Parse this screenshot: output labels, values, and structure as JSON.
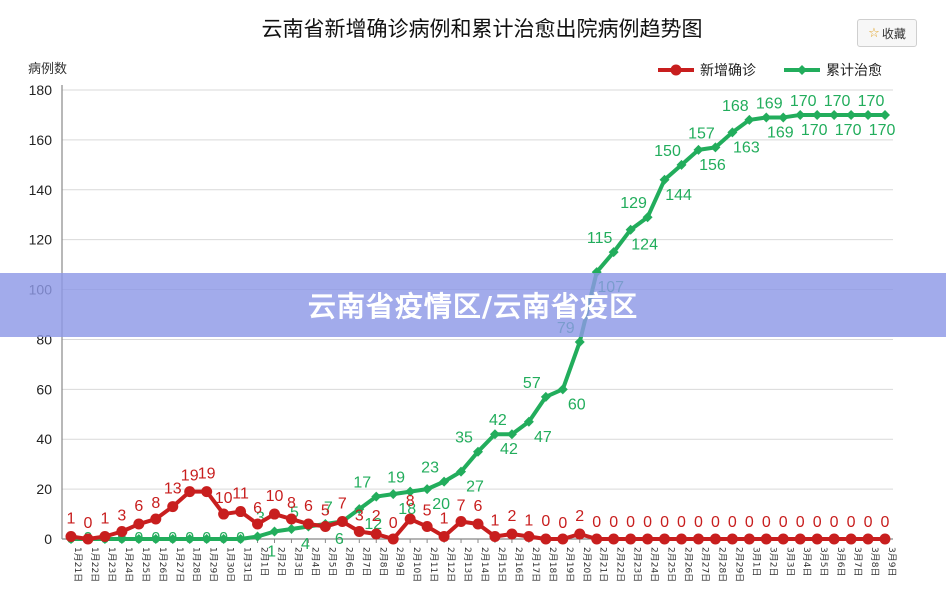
{
  "collect_button": {
    "label": "收藏",
    "icon": "star-icon"
  },
  "banner": {
    "text": "云南省疫情区/云南省疫区"
  },
  "colors": {
    "new": "#c81e1e",
    "cum": "#22ad5c",
    "axis": "#888888",
    "grid": "#d9d9d9"
  },
  "chart_data": {
    "type": "line",
    "title": "云南省新增确诊病例和累计治愈出院病例趋势图",
    "ylabel": "病例数",
    "xlabel": "",
    "ylim": [
      0,
      180
    ],
    "yticks": [
      0,
      20,
      40,
      60,
      80,
      100,
      120,
      140,
      160,
      180
    ],
    "legend_position": "top-right",
    "categories": [
      "1月21日",
      "1月22日",
      "1月23日",
      "1月24日",
      "1月25日",
      "1月26日",
      "1月27日",
      "1月28日",
      "1月29日",
      "1月30日",
      "1月31日",
      "2月1日",
      "2月2日",
      "2月3日",
      "2月4日",
      "2月5日",
      "2月6日",
      "2月7日",
      "2月8日",
      "2月9日",
      "2月10日",
      "2月11日",
      "2月12日",
      "2月13日",
      "2月14日",
      "2月15日",
      "2月16日",
      "2月17日",
      "2月18日",
      "2月19日",
      "2月20日",
      "2月21日",
      "2月22日",
      "2月23日",
      "2月24日",
      "2月25日",
      "2月26日",
      "2月27日",
      "2月28日",
      "2月29日",
      "3月1日",
      "3月2日",
      "3月3日",
      "3月4日",
      "3月5日",
      "3月6日",
      "3月7日",
      "3月8日",
      "3月9日"
    ],
    "series": [
      {
        "name": "新增确诊",
        "values": [
          1,
          0,
          1,
          3,
          6,
          8,
          13,
          19,
          19,
          10,
          11,
          6,
          10,
          8,
          6,
          5,
          7,
          3,
          2,
          0,
          8,
          5,
          1,
          7,
          6,
          1,
          2,
          1,
          0,
          0,
          2,
          0,
          0,
          0,
          0,
          0,
          0,
          0,
          0,
          0,
          0,
          0,
          0,
          0,
          0,
          0,
          0,
          0,
          0
        ]
      },
      {
        "name": "累计治愈",
        "values": [
          0,
          0,
          0,
          0,
          0,
          0,
          0,
          0,
          0,
          0,
          0,
          1,
          3,
          4,
          5,
          6,
          7,
          12,
          17,
          18,
          19,
          20,
          23,
          27,
          35,
          42,
          42,
          47,
          57,
          60,
          79,
          107,
          115,
          124,
          129,
          144,
          150,
          156,
          157,
          163,
          168,
          169,
          169,
          170,
          170,
          170,
          170,
          170,
          170
        ]
      }
    ]
  }
}
